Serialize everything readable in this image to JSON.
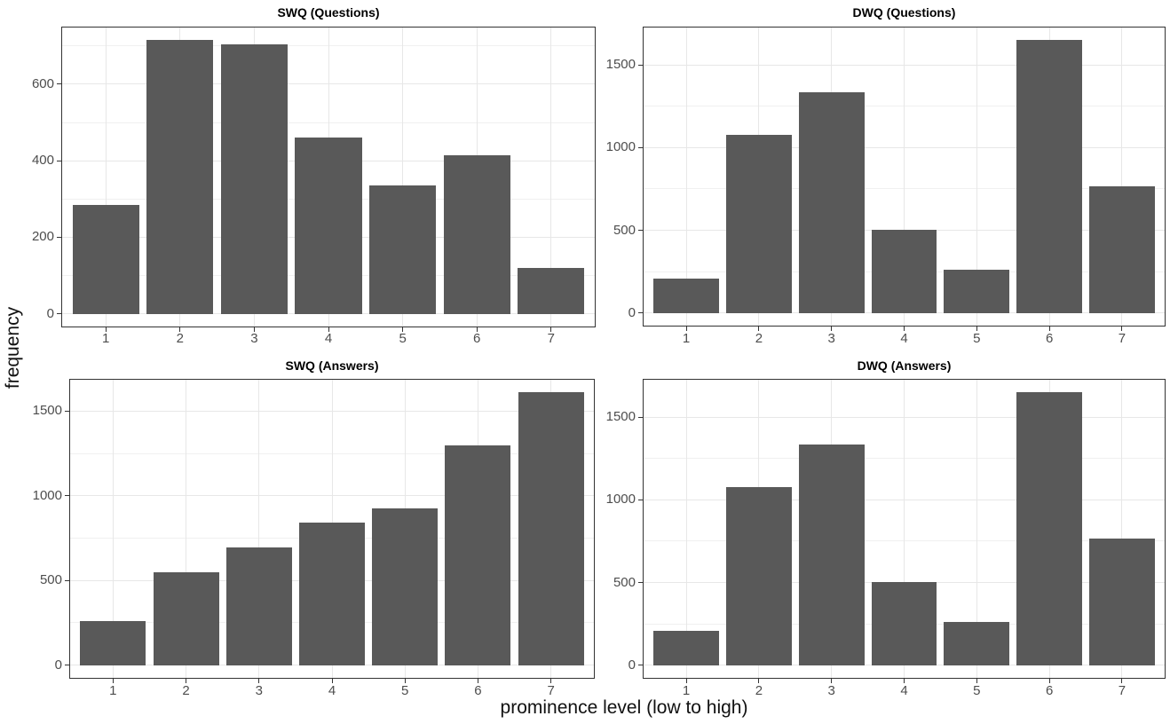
{
  "labels": {
    "ylabel": "frequency",
    "xlabel": "prominence level (low to high)"
  },
  "colors": {
    "bar": "#595959",
    "panel_background": "#ffffff",
    "grid_major": "#e7e7e7",
    "grid_minor": "#f0f0f0",
    "panel_border": "#333333",
    "tick_text": "#4d4d4d",
    "title_text": "#000000"
  },
  "chart_data": [
    {
      "type": "bar",
      "title": "SWQ (Questions)",
      "categories": [
        "1",
        "2",
        "3",
        "4",
        "5",
        "6",
        "7"
      ],
      "values": [
        285,
        715,
        705,
        460,
        335,
        415,
        120
      ],
      "yticks": [
        0,
        200,
        400,
        600
      ],
      "ylim": [
        -36,
        751
      ],
      "xlabel": "prominence level (low to high)",
      "ylabel": "frequency",
      "grid": "major and minor horizontal, major vertical",
      "legend": "none"
    },
    {
      "type": "bar",
      "title": "DWQ (Questions)",
      "categories": [
        "1",
        "2",
        "3",
        "4",
        "5",
        "6",
        "7"
      ],
      "values": [
        205,
        1080,
        1335,
        505,
        260,
        1650,
        765
      ],
      "yticks": [
        0,
        500,
        1000,
        1500
      ],
      "ylim": [
        -83,
        1733
      ],
      "xlabel": "prominence level (low to high)",
      "ylabel": "frequency",
      "grid": "major and minor horizontal, major vertical",
      "legend": "none"
    },
    {
      "type": "bar",
      "title": "SWQ (Answers)",
      "categories": [
        "1",
        "2",
        "3",
        "4",
        "5",
        "6",
        "7"
      ],
      "values": [
        260,
        550,
        695,
        840,
        925,
        1300,
        1610
      ],
      "yticks": [
        0,
        500,
        1000,
        1500
      ],
      "ylim": [
        -81,
        1691
      ],
      "xlabel": "prominence level (low to high)",
      "ylabel": "frequency",
      "grid": "major and minor horizontal, major vertical",
      "legend": "none"
    },
    {
      "type": "bar",
      "title": "DWQ (Answers)",
      "categories": [
        "1",
        "2",
        "3",
        "4",
        "5",
        "6",
        "7"
      ],
      "values": [
        205,
        1080,
        1335,
        505,
        260,
        1650,
        765
      ],
      "yticks": [
        0,
        500,
        1000,
        1500
      ],
      "ylim": [
        -83,
        1733
      ],
      "xlabel": "prominence level (low to high)",
      "ylabel": "frequency",
      "grid": "major and minor horizontal, major vertical",
      "legend": "none"
    }
  ]
}
